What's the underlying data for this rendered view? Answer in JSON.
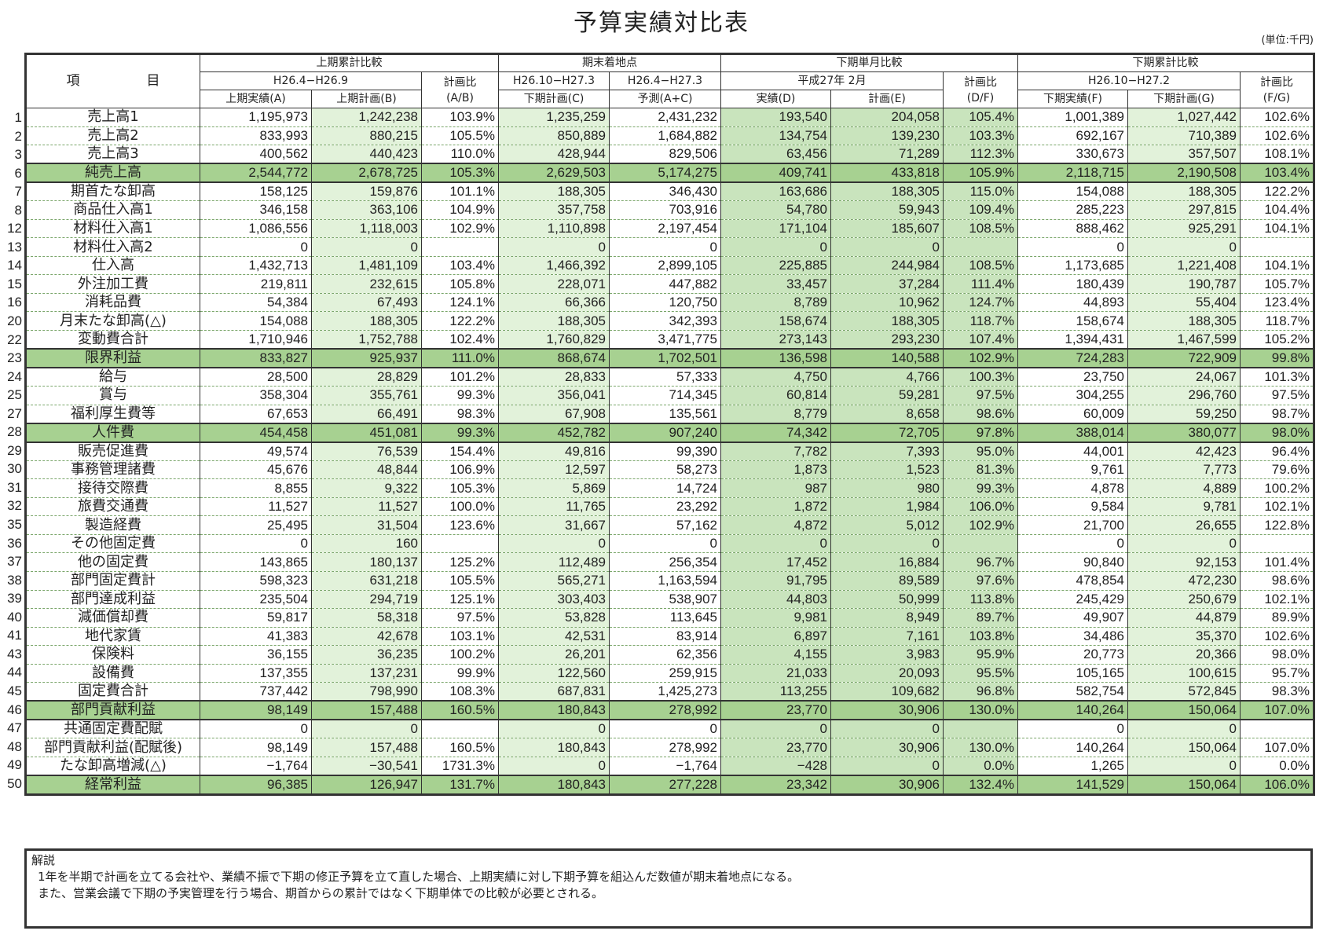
{
  "title": "予算実績対比表",
  "unit": "(単位:千円)",
  "header": {
    "item": "項　　　　　目",
    "group1": "上期累計比較",
    "group1_period": "H26.4−H26.9",
    "col_a": "上期実績(A)",
    "col_b": "上期計画(B)",
    "ratio_ab_1": "計画比",
    "ratio_ab_2": "(A/B)",
    "group2": "期末着地点",
    "group2_period_c": "H26.10−H27.3",
    "group2_period_ac": "H26.4−H27.3",
    "col_c": "下期計画(C)",
    "col_ac": "予測(A+C)",
    "group3": "下期単月比較",
    "group3_period": "平成27年 2月",
    "col_d": "実績(D)",
    "col_e": "計画(E)",
    "ratio_df_1": "計画比",
    "ratio_df_2": "(D/F)",
    "group4": "下期累計比較",
    "group4_period": "H26.10−H27.2",
    "col_f": "下期実績(F)",
    "col_g": "下期計画(G)",
    "ratio_fg_1": "計画比",
    "ratio_fg_2": "(F/G)"
  },
  "rows": [
    {
      "no": "1",
      "item": "売上高1",
      "a": "1,195,973",
      "b": "1,242,238",
      "ab": "103.9%",
      "c": "1,235,259",
      "ac": "2,431,232",
      "d": "193,540",
      "e": "204,058",
      "df": "105.4%",
      "f": "1,001,389",
      "g": "1,027,442",
      "fg": "102.6%",
      "hl": false
    },
    {
      "no": "2",
      "item": "売上高2",
      "a": "833,993",
      "b": "880,215",
      "ab": "105.5%",
      "c": "850,889",
      "ac": "1,684,882",
      "d": "134,754",
      "e": "139,230",
      "df": "103.3%",
      "f": "692,167",
      "g": "710,389",
      "fg": "102.6%",
      "hl": false
    },
    {
      "no": "3",
      "item": "売上高3",
      "a": "400,562",
      "b": "440,423",
      "ab": "110.0%",
      "c": "428,944",
      "ac": "829,506",
      "d": "63,456",
      "e": "71,289",
      "df": "112.3%",
      "f": "330,673",
      "g": "357,507",
      "fg": "108.1%",
      "hl": false
    },
    {
      "no": "6",
      "item": "純売上高",
      "a": "2,544,772",
      "b": "2,678,725",
      "ab": "105.3%",
      "c": "2,629,503",
      "ac": "5,174,275",
      "d": "409,741",
      "e": "433,818",
      "df": "105.9%",
      "f": "2,118,715",
      "g": "2,190,508",
      "fg": "103.4%",
      "hl": true
    },
    {
      "no": "7",
      "item": "期首たな卸高",
      "a": "158,125",
      "b": "159,876",
      "ab": "101.1%",
      "c": "188,305",
      "ac": "346,430",
      "d": "163,686",
      "e": "188,305",
      "df": "115.0%",
      "f": "154,088",
      "g": "188,305",
      "fg": "122.2%",
      "hl": false
    },
    {
      "no": "8",
      "item": "商品仕入高1",
      "a": "346,158",
      "b": "363,106",
      "ab": "104.9%",
      "c": "357,758",
      "ac": "703,916",
      "d": "54,780",
      "e": "59,943",
      "df": "109.4%",
      "f": "285,223",
      "g": "297,815",
      "fg": "104.4%",
      "hl": false
    },
    {
      "no": "12",
      "item": "材料仕入高1",
      "a": "1,086,556",
      "b": "1,118,003",
      "ab": "102.9%",
      "c": "1,110,898",
      "ac": "2,197,454",
      "d": "171,104",
      "e": "185,607",
      "df": "108.5%",
      "f": "888,462",
      "g": "925,291",
      "fg": "104.1%",
      "hl": false
    },
    {
      "no": "13",
      "item": "材料仕入高2",
      "a": "0",
      "b": "0",
      "ab": "",
      "c": "0",
      "ac": "0",
      "d": "0",
      "e": "0",
      "df": "",
      "f": "0",
      "g": "0",
      "fg": "",
      "hl": false
    },
    {
      "no": "14",
      "item": "仕入高",
      "a": "1,432,713",
      "b": "1,481,109",
      "ab": "103.4%",
      "c": "1,466,392",
      "ac": "2,899,105",
      "d": "225,885",
      "e": "244,984",
      "df": "108.5%",
      "f": "1,173,685",
      "g": "1,221,408",
      "fg": "104.1%",
      "hl": false
    },
    {
      "no": "15",
      "item": "外注加工費",
      "a": "219,811",
      "b": "232,615",
      "ab": "105.8%",
      "c": "228,071",
      "ac": "447,882",
      "d": "33,457",
      "e": "37,284",
      "df": "111.4%",
      "f": "180,439",
      "g": "190,787",
      "fg": "105.7%",
      "hl": false
    },
    {
      "no": "16",
      "item": "消耗品費",
      "a": "54,384",
      "b": "67,493",
      "ab": "124.1%",
      "c": "66,366",
      "ac": "120,750",
      "d": "8,789",
      "e": "10,962",
      "df": "124.7%",
      "f": "44,893",
      "g": "55,404",
      "fg": "123.4%",
      "hl": false
    },
    {
      "no": "20",
      "item": "月末たな卸高(△)",
      "a": "154,088",
      "b": "188,305",
      "ab": "122.2%",
      "c": "188,305",
      "ac": "342,393",
      "d": "158,674",
      "e": "188,305",
      "df": "118.7%",
      "f": "158,674",
      "g": "188,305",
      "fg": "118.7%",
      "hl": false
    },
    {
      "no": "22",
      "item": "変動費合計",
      "a": "1,710,946",
      "b": "1,752,788",
      "ab": "102.4%",
      "c": "1,760,829",
      "ac": "3,471,775",
      "d": "273,143",
      "e": "293,230",
      "df": "107.4%",
      "f": "1,394,431",
      "g": "1,467,599",
      "fg": "105.2%",
      "hl": false
    },
    {
      "no": "23",
      "item": "限界利益",
      "a": "833,827",
      "b": "925,937",
      "ab": "111.0%",
      "c": "868,674",
      "ac": "1,702,501",
      "d": "136,598",
      "e": "140,588",
      "df": "102.9%",
      "f": "724,283",
      "g": "722,909",
      "fg": "99.8%",
      "hl": true
    },
    {
      "no": "24",
      "item": "給与",
      "a": "28,500",
      "b": "28,829",
      "ab": "101.2%",
      "c": "28,833",
      "ac": "57,333",
      "d": "4,750",
      "e": "4,766",
      "df": "100.3%",
      "f": "23,750",
      "g": "24,067",
      "fg": "101.3%",
      "hl": false
    },
    {
      "no": "25",
      "item": "賞与",
      "a": "358,304",
      "b": "355,761",
      "ab": "99.3%",
      "c": "356,041",
      "ac": "714,345",
      "d": "60,814",
      "e": "59,281",
      "df": "97.5%",
      "f": "304,255",
      "g": "296,760",
      "fg": "97.5%",
      "hl": false
    },
    {
      "no": "27",
      "item": "福利厚生費等",
      "a": "67,653",
      "b": "66,491",
      "ab": "98.3%",
      "c": "67,908",
      "ac": "135,561",
      "d": "8,779",
      "e": "8,658",
      "df": "98.6%",
      "f": "60,009",
      "g": "59,250",
      "fg": "98.7%",
      "hl": false
    },
    {
      "no": "28",
      "item": "人件費",
      "a": "454,458",
      "b": "451,081",
      "ab": "99.3%",
      "c": "452,782",
      "ac": "907,240",
      "d": "74,342",
      "e": "72,705",
      "df": "97.8%",
      "f": "388,014",
      "g": "380,077",
      "fg": "98.0%",
      "hl": true
    },
    {
      "no": "29",
      "item": "販売促進費",
      "a": "49,574",
      "b": "76,539",
      "ab": "154.4%",
      "c": "49,816",
      "ac": "99,390",
      "d": "7,782",
      "e": "7,393",
      "df": "95.0%",
      "f": "44,001",
      "g": "42,423",
      "fg": "96.4%",
      "hl": false
    },
    {
      "no": "30",
      "item": "事務管理諸費",
      "a": "45,676",
      "b": "48,844",
      "ab": "106.9%",
      "c": "12,597",
      "ac": "58,273",
      "d": "1,873",
      "e": "1,523",
      "df": "81.3%",
      "f": "9,761",
      "g": "7,773",
      "fg": "79.6%",
      "hl": false
    },
    {
      "no": "31",
      "item": "接待交際費",
      "a": "8,855",
      "b": "9,322",
      "ab": "105.3%",
      "c": "5,869",
      "ac": "14,724",
      "d": "987",
      "e": "980",
      "df": "99.3%",
      "f": "4,878",
      "g": "4,889",
      "fg": "100.2%",
      "hl": false
    },
    {
      "no": "32",
      "item": "旅費交通費",
      "a": "11,527",
      "b": "11,527",
      "ab": "100.0%",
      "c": "11,765",
      "ac": "23,292",
      "d": "1,872",
      "e": "1,984",
      "df": "106.0%",
      "f": "9,584",
      "g": "9,781",
      "fg": "102.1%",
      "hl": false
    },
    {
      "no": "35",
      "item": "製造経費",
      "a": "25,495",
      "b": "31,504",
      "ab": "123.6%",
      "c": "31,667",
      "ac": "57,162",
      "d": "4,872",
      "e": "5,012",
      "df": "102.9%",
      "f": "21,700",
      "g": "26,655",
      "fg": "122.8%",
      "hl": false
    },
    {
      "no": "36",
      "item": "その他固定費",
      "a": "0",
      "b": "160",
      "ab": "",
      "c": "0",
      "ac": "0",
      "d": "0",
      "e": "0",
      "df": "",
      "f": "0",
      "g": "0",
      "fg": "",
      "hl": false
    },
    {
      "no": "37",
      "item": "他の固定費",
      "a": "143,865",
      "b": "180,137",
      "ab": "125.2%",
      "c": "112,489",
      "ac": "256,354",
      "d": "17,452",
      "e": "16,884",
      "df": "96.7%",
      "f": "90,840",
      "g": "92,153",
      "fg": "101.4%",
      "hl": false
    },
    {
      "no": "38",
      "item": "部門固定費計",
      "a": "598,323",
      "b": "631,218",
      "ab": "105.5%",
      "c": "565,271",
      "ac": "1,163,594",
      "d": "91,795",
      "e": "89,589",
      "df": "97.6%",
      "f": "478,854",
      "g": "472,230",
      "fg": "98.6%",
      "hl": false
    },
    {
      "no": "39",
      "item": "部門達成利益",
      "a": "235,504",
      "b": "294,719",
      "ab": "125.1%",
      "c": "303,403",
      "ac": "538,907",
      "d": "44,803",
      "e": "50,999",
      "df": "113.8%",
      "f": "245,429",
      "g": "250,679",
      "fg": "102.1%",
      "hl": false
    },
    {
      "no": "40",
      "item": "減価償却費",
      "a": "59,817",
      "b": "58,318",
      "ab": "97.5%",
      "c": "53,828",
      "ac": "113,645",
      "d": "9,981",
      "e": "8,949",
      "df": "89.7%",
      "f": "49,907",
      "g": "44,879",
      "fg": "89.9%",
      "hl": false
    },
    {
      "no": "41",
      "item": "地代家賃",
      "a": "41,383",
      "b": "42,678",
      "ab": "103.1%",
      "c": "42,531",
      "ac": "83,914",
      "d": "6,897",
      "e": "7,161",
      "df": "103.8%",
      "f": "34,486",
      "g": "35,370",
      "fg": "102.6%",
      "hl": false
    },
    {
      "no": "43",
      "item": "保険料",
      "a": "36,155",
      "b": "36,235",
      "ab": "100.2%",
      "c": "26,201",
      "ac": "62,356",
      "d": "4,155",
      "e": "3,983",
      "df": "95.9%",
      "f": "20,773",
      "g": "20,366",
      "fg": "98.0%",
      "hl": false
    },
    {
      "no": "44",
      "item": "設備費",
      "a": "137,355",
      "b": "137,231",
      "ab": "99.9%",
      "c": "122,560",
      "ac": "259,915",
      "d": "21,033",
      "e": "20,093",
      "df": "95.5%",
      "f": "105,165",
      "g": "100,615",
      "fg": "95.7%",
      "hl": false
    },
    {
      "no": "45",
      "item": "固定費合計",
      "a": "737,442",
      "b": "798,990",
      "ab": "108.3%",
      "c": "687,831",
      "ac": "1,425,273",
      "d": "113,255",
      "e": "109,682",
      "df": "96.8%",
      "f": "582,754",
      "g": "572,845",
      "fg": "98.3%",
      "hl": false
    },
    {
      "no": "46",
      "item": "部門貢献利益",
      "a": "98,149",
      "b": "157,488",
      "ab": "160.5%",
      "c": "180,843",
      "ac": "278,992",
      "d": "23,770",
      "e": "30,906",
      "df": "130.0%",
      "f": "140,264",
      "g": "150,064",
      "fg": "107.0%",
      "hl": true
    },
    {
      "no": "47",
      "item": "共通固定費配賦",
      "a": "0",
      "b": "0",
      "ab": "",
      "c": "0",
      "ac": "0",
      "d": "0",
      "e": "0",
      "df": "",
      "f": "0",
      "g": "0",
      "fg": "",
      "hl": false
    },
    {
      "no": "48",
      "item": "部門貢献利益(配賦後)",
      "a": "98,149",
      "b": "157,488",
      "ab": "160.5%",
      "c": "180,843",
      "ac": "278,992",
      "d": "23,770",
      "e": "30,906",
      "df": "130.0%",
      "f": "140,264",
      "g": "150,064",
      "fg": "107.0%",
      "hl": false
    },
    {
      "no": "49",
      "item": "たな卸高増減(△)",
      "a": "−1,764",
      "b": "−30,541",
      "ab": "1731.3%",
      "c": "0",
      "ac": "−1,764",
      "d": "−428",
      "e": "0",
      "df": "0.0%",
      "f": "1,265",
      "g": "0",
      "fg": "0.0%",
      "hl": false
    },
    {
      "no": "50",
      "item": "経常利益",
      "a": "96,385",
      "b": "126,947",
      "ab": "131.7%",
      "c": "180,843",
      "ac": "277,228",
      "d": "23,342",
      "e": "30,906",
      "df": "132.4%",
      "f": "141,529",
      "g": "150,064",
      "fg": "106.0%",
      "hl": true
    }
  ],
  "explanation": {
    "heading": "解説",
    "lines": [
      "1年を半期で計画を立てる会社や、業績不振で下期の修正予算を立て直した場合、上期実績に対し下期予算を組込んだ数値が期末着地点になる。",
      "また、営業会議で下期の予実管理を行う場合、期首からの累計ではなく下期単体での比較が必要とされる。"
    ]
  },
  "colors": {
    "highlight_row": "#a7d191",
    "plan_column": "#e2f2da",
    "monthly_block": "#c9e4bd",
    "border": "#333333"
  }
}
